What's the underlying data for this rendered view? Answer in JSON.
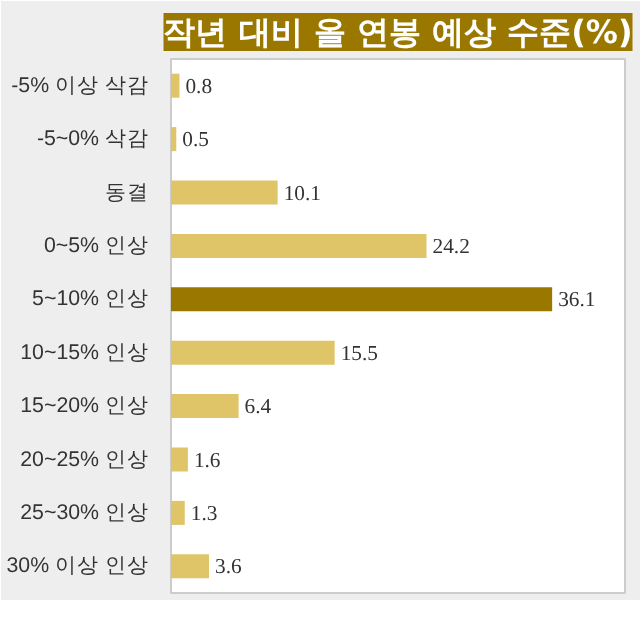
{
  "chart_data": {
    "type": "bar",
    "orientation": "horizontal",
    "title": "작년 대비 올 연봉 예상 수준(%)",
    "categories": [
      "-5% 이상 삭감",
      "-5~0% 삭감",
      "동결",
      "0~5% 인상",
      "5~10% 인상",
      "10~15% 인상",
      "15~20% 인상",
      "20~25% 인상",
      "25~30% 인상",
      "30% 이상 인상"
    ],
    "values": [
      0.8,
      0.5,
      10.1,
      24.2,
      36.1,
      15.5,
      6.4,
      1.6,
      1.3,
      3.6
    ],
    "colors": [
      "#e0c468",
      "#e0c468",
      "#e0c468",
      "#e0c468",
      "#9a7800",
      "#e0c468",
      "#e0c468",
      "#e0c468",
      "#e0c468",
      "#e0c468"
    ],
    "xlim": [
      0,
      43
    ],
    "tick_labels": "y",
    "data_labels": true,
    "grid": false
  }
}
